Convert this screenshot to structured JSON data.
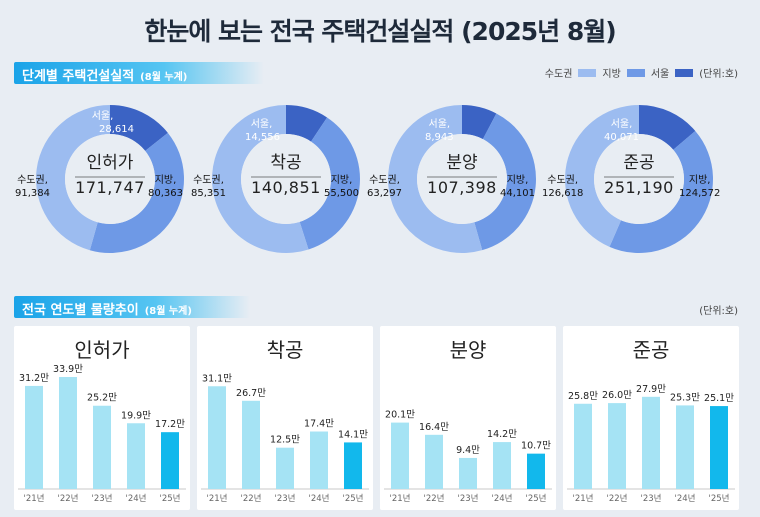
{
  "title": "한눈에 보는 전국 주택건설실적 (2025년 8월)",
  "section1": {
    "label": "단계별 주택건설실적",
    "sub": "(8월 누계)"
  },
  "section2": {
    "label": "전국 연도별 물량추이",
    "sub": "(8월 누계)",
    "unit": "(단위:호)"
  },
  "legend": {
    "items": [
      {
        "name": "수도권",
        "color": "#9cbcf0"
      },
      {
        "name": "지방",
        "color": "#6e99e6"
      },
      {
        "name": "서울",
        "color": "#3b63c4"
      }
    ],
    "unit": "(단위:호)"
  },
  "chart_data": [
    {
      "type": "pie",
      "title": "인허가",
      "total": "171,747",
      "slices": [
        {
          "name": "서울",
          "label": "서울,",
          "value": 28614,
          "value_text": "28,614"
        },
        {
          "name": "지방",
          "label": "지방,",
          "value": 80363,
          "value_text": "80,363"
        },
        {
          "name": "수도권",
          "label": "수도권,",
          "value": 91384,
          "value_text": "91,384"
        }
      ]
    },
    {
      "type": "pie",
      "title": "착공",
      "total": "140,851",
      "slices": [
        {
          "name": "서울",
          "label": "서울,",
          "value": 14556,
          "value_text": "14,556"
        },
        {
          "name": "지방",
          "label": "지방,",
          "value": 55500,
          "value_text": "55,500"
        },
        {
          "name": "수도권",
          "label": "수도권,",
          "value": 85351,
          "value_text": "85,351"
        }
      ]
    },
    {
      "type": "pie",
      "title": "분양",
      "total": "107,398",
      "slices": [
        {
          "name": "서울",
          "label": "서울,",
          "value": 8943,
          "value_text": "8,943"
        },
        {
          "name": "지방",
          "label": "지방,",
          "value": 44101,
          "value_text": "44,101"
        },
        {
          "name": "수도권",
          "label": "수도권,",
          "value": 63297,
          "value_text": "63,297"
        }
      ]
    },
    {
      "type": "pie",
      "title": "준공",
      "total": "251,190",
      "slices": [
        {
          "name": "서울",
          "label": "서울,",
          "value": 40071,
          "value_text": "40,071"
        },
        {
          "name": "지방",
          "label": "지방,",
          "value": 124572,
          "value_text": "124,572"
        },
        {
          "name": "수도권",
          "label": "수도권,",
          "value": 126618,
          "value_text": "126,618"
        }
      ]
    },
    {
      "type": "bar",
      "title": "인허가",
      "categories": [
        "'21년",
        "'22년",
        "'23년",
        "'24년",
        "'25년"
      ],
      "values": [
        31.2,
        33.9,
        25.2,
        19.9,
        17.2
      ],
      "labels": [
        "31.2만",
        "33.9만",
        "25.2만",
        "19.9만",
        "17.2만"
      ]
    },
    {
      "type": "bar",
      "title": "착공",
      "categories": [
        "'21년",
        "'22년",
        "'23년",
        "'24년",
        "'25년"
      ],
      "values": [
        31.1,
        26.7,
        12.5,
        17.4,
        14.1
      ],
      "labels": [
        "31.1만",
        "26.7만",
        "12.5만",
        "17.4만",
        "14.1만"
      ]
    },
    {
      "type": "bar",
      "title": "분양",
      "categories": [
        "'21년",
        "'22년",
        "'23년",
        "'24년",
        "'25년"
      ],
      "values": [
        20.1,
        16.4,
        9.4,
        14.2,
        10.7
      ],
      "labels": [
        "20.1만",
        "16.4만",
        "9.4만",
        "14.2만",
        "10.7만"
      ]
    },
    {
      "type": "bar",
      "title": "준공",
      "categories": [
        "'21년",
        "'22년",
        "'23년",
        "'24년",
        "'25년"
      ],
      "values": [
        25.8,
        26.0,
        27.9,
        25.3,
        25.1
      ],
      "labels": [
        "25.8만",
        "26.0만",
        "27.9만",
        "25.3만",
        "25.1만"
      ]
    }
  ],
  "bar_colors": {
    "past": "#a5e3f4",
    "current": "#12b8ec"
  }
}
